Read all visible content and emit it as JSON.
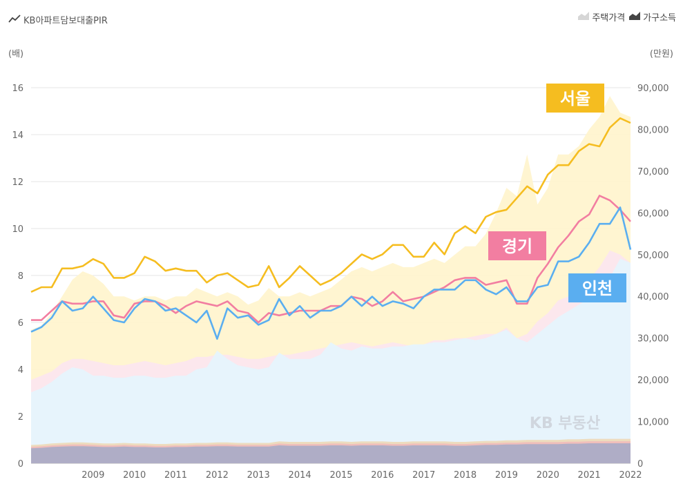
{
  "legend": {
    "series_label": "KB아파트담보대출PIR",
    "house_price_label": "주택가격",
    "income_label": "가구소득"
  },
  "units": {
    "left": "(배)",
    "right": "(만원)"
  },
  "watermark": "KB 부동산",
  "colors": {
    "seoul": "#f5bd20",
    "gyeonggi": "#f27ea1",
    "incheon": "#5aaef0",
    "seoul_fill": "#fff4cf",
    "gyeonggi_fill": "#fce6ee",
    "incheon_fill": "#e6f4fd",
    "income_fill": "#a7abc8",
    "income_top": "#f3c98a"
  },
  "chart_data": {
    "type": "line",
    "x_start": "2008 Q1",
    "x_end": "2022 Q3",
    "x_ticks": [
      "2009",
      "2010",
      "2011",
      "2012",
      "2013",
      "2014",
      "2015",
      "2016",
      "2017",
      "2018",
      "2019",
      "2020",
      "2021",
      "2022"
    ],
    "y_left": {
      "label": "(배)",
      "ticks": [
        "0",
        "2",
        "4",
        "6",
        "8",
        "10",
        "12",
        "14",
        "16"
      ],
      "range": [
        0,
        16
      ]
    },
    "y_right": {
      "label": "(만원)",
      "ticks": [
        "0",
        "10,000",
        "20,000",
        "30,000",
        "40,000",
        "50,000",
        "60,000",
        "70,000",
        "80,000",
        "90,000"
      ],
      "range": [
        0,
        90000
      ]
    },
    "series": [
      {
        "name": "서울",
        "values": [
          7.3,
          7.5,
          7.5,
          8.3,
          8.3,
          8.4,
          8.7,
          8.5,
          7.9,
          7.9,
          8.1,
          8.8,
          8.6,
          8.2,
          8.3,
          8.2,
          8.2,
          7.7,
          8.0,
          8.1,
          7.8,
          7.5,
          7.6,
          8.4,
          7.5,
          7.9,
          8.4,
          8.0,
          7.6,
          7.8,
          8.1,
          8.5,
          8.9,
          8.7,
          8.9,
          9.3,
          9.3,
          8.8,
          8.8,
          9.4,
          8.9,
          9.8,
          10.1,
          9.8,
          10.5,
          10.7,
          10.8,
          11.3,
          11.8,
          11.5,
          12.3,
          12.7,
          12.7,
          13.3,
          13.6,
          13.5,
          14.3,
          14.7,
          14.5
        ]
      },
      {
        "name": "경기",
        "values": [
          6.1,
          6.1,
          6.5,
          6.9,
          6.8,
          6.8,
          6.9,
          6.9,
          6.3,
          6.2,
          6.8,
          6.9,
          6.9,
          6.7,
          6.4,
          6.7,
          6.9,
          6.8,
          6.7,
          6.9,
          6.5,
          6.4,
          6.0,
          6.4,
          6.3,
          6.4,
          6.5,
          6.5,
          6.5,
          6.7,
          6.7,
          7.1,
          7.0,
          6.7,
          6.9,
          7.3,
          6.9,
          7.0,
          7.1,
          7.3,
          7.5,
          7.8,
          7.9,
          7.9,
          7.6,
          7.7,
          7.8,
          6.8,
          6.8,
          7.9,
          8.5,
          9.2,
          9.7,
          10.3,
          10.6,
          11.4,
          11.2,
          10.8,
          10.3
        ]
      },
      {
        "name": "인천",
        "values": [
          5.6,
          5.8,
          6.2,
          6.9,
          6.5,
          6.6,
          7.1,
          6.6,
          6.1,
          6.0,
          6.6,
          7.0,
          6.9,
          6.5,
          6.6,
          6.3,
          6.0,
          6.5,
          5.3,
          6.6,
          6.2,
          6.3,
          5.9,
          6.1,
          7.0,
          6.3,
          6.7,
          6.2,
          6.5,
          6.5,
          6.7,
          7.1,
          6.7,
          7.1,
          6.7,
          6.9,
          6.8,
          6.6,
          7.1,
          7.4,
          7.4,
          7.4,
          7.8,
          7.8,
          7.4,
          7.2,
          7.5,
          6.9,
          6.9,
          7.5,
          7.6,
          8.6,
          8.6,
          8.8,
          9.4,
          10.2,
          10.2,
          10.9,
          9.1
        ]
      }
    ],
    "house_price_areas": [
      {
        "name": "서울",
        "values": [
          32000,
          33000,
          36000,
          40000,
          44000,
          46000,
          45000,
          43000,
          40000,
          40000,
          39000,
          40000,
          40000,
          39000,
          40000,
          40000,
          42000,
          41000,
          40000,
          41000,
          40000,
          38000,
          39000,
          42000,
          40000,
          40000,
          41000,
          40000,
          41000,
          42000,
          44000,
          46000,
          47000,
          46000,
          47000,
          48000,
          47000,
          47000,
          48000,
          49000,
          48000,
          50000,
          52000,
          52000,
          55000,
          60000,
          66000,
          64000,
          74000,
          62000,
          66000,
          74000,
          74000,
          76000,
          80000,
          83000,
          88000,
          84000,
          83000
        ]
      },
      {
        "name": "경기",
        "values": [
          20000,
          21000,
          22000,
          24000,
          25000,
          25000,
          24500,
          24000,
          23500,
          23500,
          24000,
          24500,
          24000,
          23500,
          24000,
          24500,
          25500,
          25500,
          26000,
          26000,
          25500,
          25000,
          25000,
          25500,
          26000,
          26000,
          26500,
          27000,
          27500,
          28000,
          28500,
          29000,
          28500,
          28000,
          28500,
          29000,
          28500,
          28000,
          28500,
          29500,
          29500,
          30000,
          30000,
          30500,
          31000,
          31000,
          32500,
          30000,
          31000,
          34000,
          36000,
          39000,
          40000,
          42000,
          44000,
          47000,
          51000,
          50000,
          48000
        ]
      },
      {
        "name": "인천",
        "values": [
          17000,
          18000,
          19500,
          21500,
          23000,
          22500,
          21000,
          21000,
          20500,
          20500,
          21000,
          21000,
          20500,
          20500,
          21000,
          21000,
          22500,
          23000,
          27000,
          25000,
          23500,
          23000,
          22500,
          23000,
          26500,
          25000,
          25000,
          25000,
          26000,
          29000,
          27500,
          27000,
          28000,
          27500,
          27500,
          28000,
          28000,
          28500,
          28500,
          29000,
          29000,
          29500,
          30000,
          29500,
          30000,
          31000,
          32000,
          30000,
          29000,
          31000,
          33000,
          35000,
          36500,
          38000,
          39500,
          43000,
          44500,
          49000,
          48000
        ]
      }
    ],
    "income_area": {
      "name": "가구소득",
      "values": [
        3600,
        3700,
        3900,
        4000,
        4100,
        4100,
        4000,
        3900,
        3900,
        4000,
        3900,
        3900,
        3800,
        3800,
        3900,
        3900,
        4000,
        4000,
        4100,
        4100,
        4000,
        4000,
        4000,
        4000,
        4300,
        4200,
        4200,
        4200,
        4200,
        4300,
        4300,
        4200,
        4300,
        4300,
        4300,
        4200,
        4200,
        4300,
        4300,
        4300,
        4300,
        4200,
        4200,
        4300,
        4400,
        4400,
        4500,
        4500,
        4600,
        4600,
        4600,
        4600,
        4700,
        4700,
        4800,
        4800,
        4800,
        4800,
        4800
      ]
    }
  }
}
